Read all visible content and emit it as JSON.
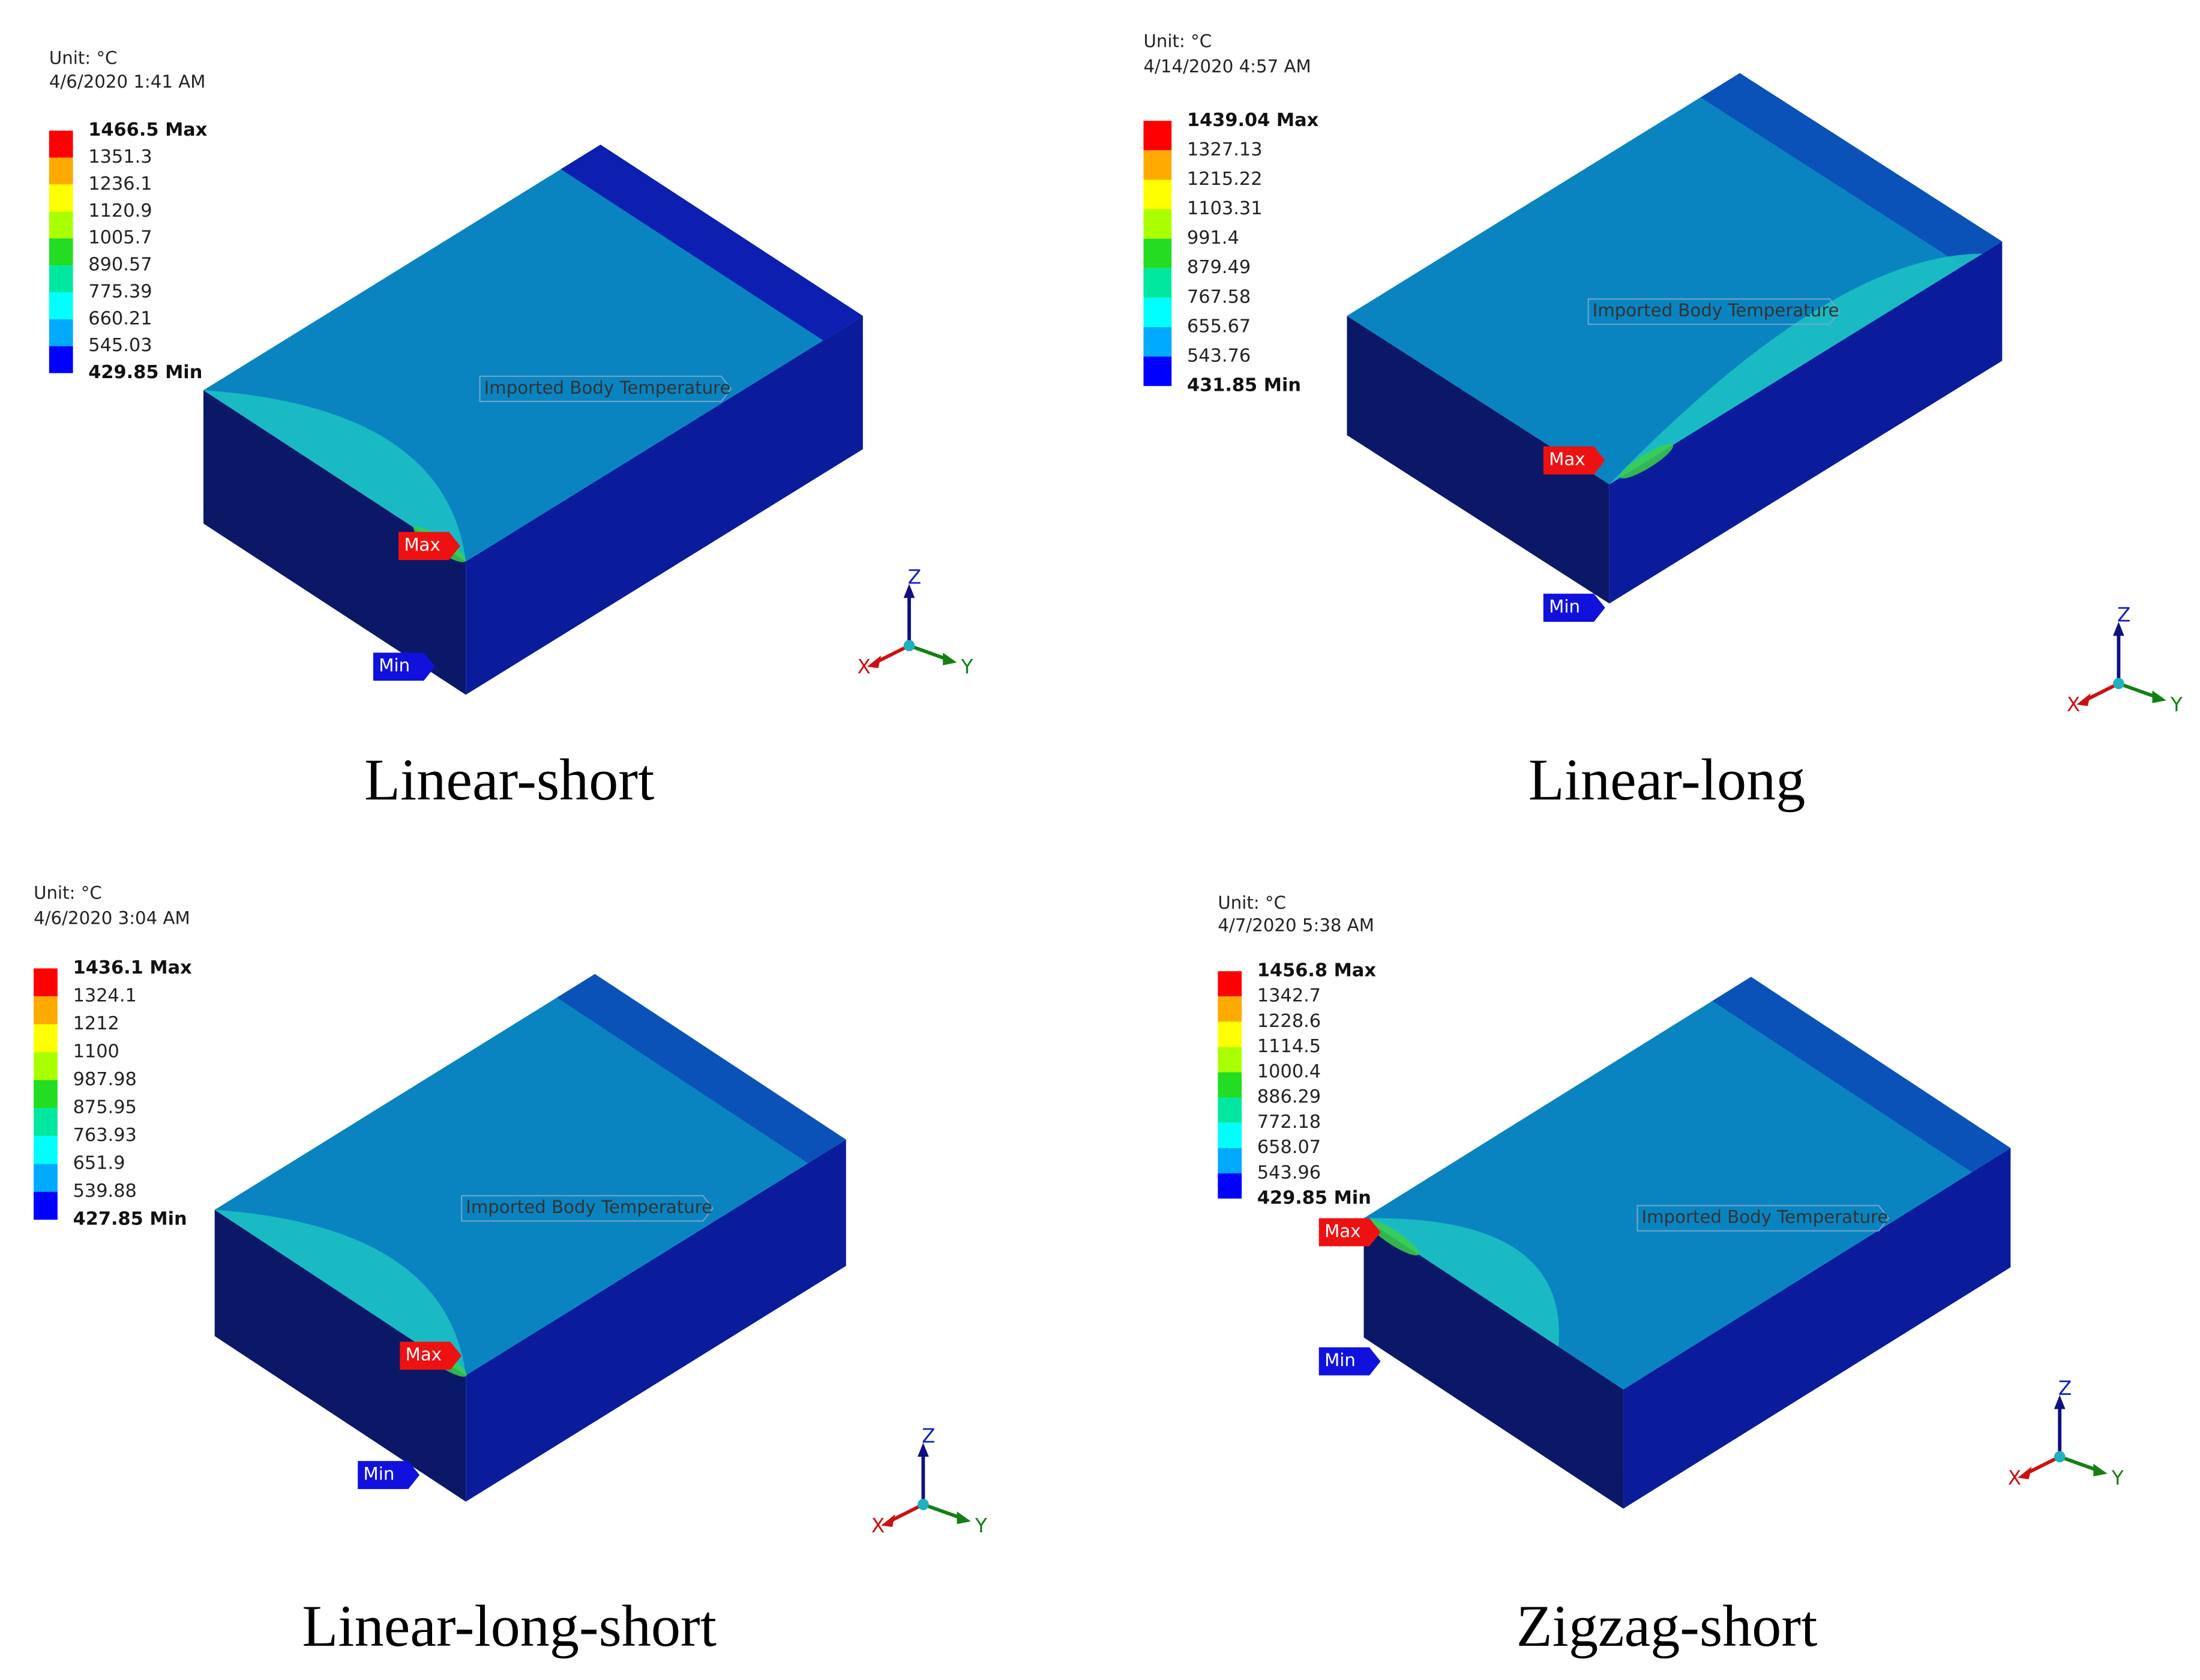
{
  "legend_colors": [
    "#ff0000",
    "#ffaa00",
    "#ffff00",
    "#aaff00",
    "#22dd22",
    "#00e8a0",
    "#00ffff",
    "#00aaff",
    "#0000ff"
  ],
  "panels": [
    {
      "unit": "Unit: °C",
      "date": "4/6/2020 1:41 AM",
      "legend": [
        "1466.5 Max",
        "1351.3",
        "1236.1",
        "1120.9",
        "1005.7",
        "890.57",
        "775.39",
        "660.21",
        "545.03",
        "429.85 Min"
      ],
      "annotation": "Imported Body Temperature",
      "max_label": "Max",
      "min_label": "Min",
      "axes": [
        "X",
        "Y",
        "Z"
      ],
      "caption": "Linear-short"
    },
    {
      "unit": "Unit: °C",
      "date": "4/14/2020 4:57 AM",
      "legend": [
        "1439.04 Max",
        "1327.13",
        "1215.22",
        "1103.31",
        "991.4",
        "879.49",
        "767.58",
        "655.67",
        "543.76",
        "431.85 Min"
      ],
      "annotation": "Imported Body Temperature",
      "max_label": "Max",
      "min_label": "Min",
      "axes": [
        "X",
        "Y",
        "Z"
      ],
      "caption": "Linear-long"
    },
    {
      "unit": "Unit: °C",
      "date": "4/6/2020 3:04 AM",
      "legend": [
        "1436.1 Max",
        "1324.1",
        "1212",
        "1100",
        "987.98",
        "875.95",
        "763.93",
        "651.9",
        "539.88",
        "427.85 Min"
      ],
      "annotation": "Imported Body Temperature",
      "max_label": "Max",
      "min_label": "Min",
      "axes": [
        "X",
        "Y",
        "Z"
      ],
      "caption": "Linear-long-short"
    },
    {
      "unit": "Unit: °C",
      "date": "4/7/2020 5:38 AM",
      "legend": [
        "1456.8 Max",
        "1342.7",
        "1228.6",
        "1114.5",
        "1000.4",
        "886.29",
        "772.18",
        "658.07",
        "543.96",
        "429.85 Min"
      ],
      "annotation": "Imported Body Temperature",
      "max_label": "Max",
      "min_label": "Min",
      "axes": [
        "X",
        "Y",
        "Z"
      ],
      "caption": "Zigzag-short"
    }
  ]
}
